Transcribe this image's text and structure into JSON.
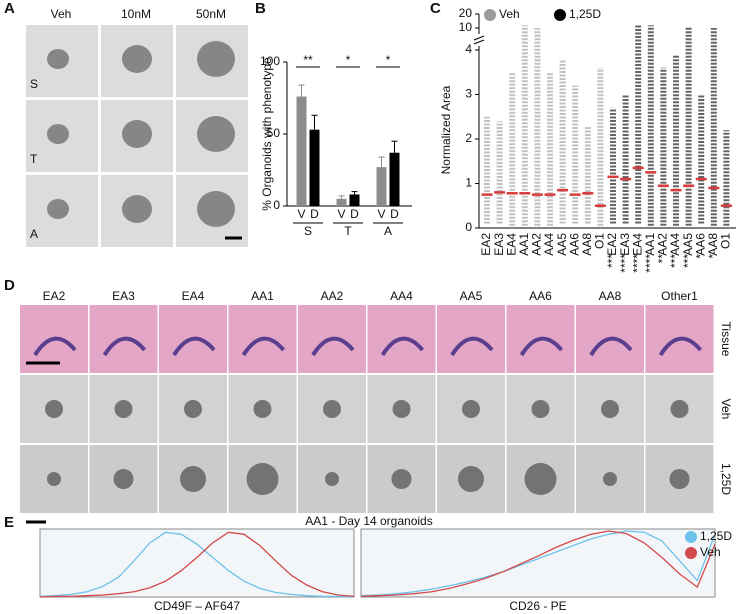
{
  "panel_labels": [
    "A",
    "B",
    "C",
    "D",
    "E"
  ],
  "panel_a": {
    "columns": [
      "Veh",
      "10nM",
      "50nM"
    ],
    "rows": [
      "S",
      "T",
      "A"
    ]
  },
  "panel_d": {
    "columns": [
      "EA2",
      "EA3",
      "EA4",
      "AA1",
      "AA2",
      "AA4",
      "AA5",
      "AA6",
      "AA8",
      "Other1"
    ],
    "rows": [
      "Tissue",
      "Veh",
      "1,25D"
    ]
  },
  "chart_data": [
    {
      "type": "bar",
      "ylabel": "% Organoids with phenotype",
      "categories": [
        "S",
        "T",
        "A"
      ],
      "series": [
        {
          "name": "V",
          "color": "#8c8c8c",
          "values": [
            76,
            5,
            27
          ],
          "errors": [
            8,
            2,
            7
          ]
        },
        {
          "name": "D",
          "color": "#000000",
          "values": [
            53,
            8,
            37
          ],
          "errors": [
            10,
            2,
            8
          ]
        }
      ],
      "annotations": [
        "**",
        "*",
        "*"
      ],
      "ylim": [
        0,
        100
      ],
      "yticks": [
        0,
        50,
        100
      ]
    },
    {
      "type": "strip",
      "ylabel": "Normalized Area",
      "categories": [
        "EA2",
        "EA3",
        "EA4",
        "AA1",
        "AA2",
        "AA4",
        "AA5",
        "AA6",
        "AA8",
        "O1"
      ],
      "series": [
        {
          "name": "Veh",
          "color": "#9a9a9a",
          "values": [
            0.75,
            0.8,
            0.78,
            0.78,
            0.75,
            0.75,
            0.85,
            0.75,
            0.78,
            0.5
          ],
          "ranges": [
            [
              0.1,
              2.5
            ],
            [
              0.1,
              2.4
            ],
            [
              0.05,
              3.5
            ],
            [
              0.05,
              12
            ],
            [
              0.05,
              10
            ],
            [
              0.05,
              3.5
            ],
            [
              0.1,
              3.8
            ],
            [
              0.1,
              3.2
            ],
            [
              0.1,
              2.3
            ],
            [
              0.05,
              3.6
            ]
          ]
        },
        {
          "name": "1,25D",
          "color": "#000000",
          "values": [
            1.15,
            1.1,
            1.35,
            1.25,
            0.95,
            0.85,
            0.95,
            1.1,
            0.9,
            0.5
          ],
          "ranges": [
            [
              0.1,
              2.7
            ],
            [
              0.1,
              3.0
            ],
            [
              0.1,
              12
            ],
            [
              0.05,
              12
            ],
            [
              0.05,
              3.6
            ],
            [
              0.05,
              3.9
            ],
            [
              0.05,
              11
            ],
            [
              0.1,
              3.0
            ],
            [
              0.05,
              10
            ],
            [
              0.05,
              2.2
            ]
          ],
          "annotations": [
            "***",
            "****",
            "****",
            "****",
            "**",
            "***",
            "***",
            "*",
            "*",
            null
          ]
        }
      ],
      "median_color": "#d93a3a",
      "ylim": [
        0,
        4
      ],
      "yticks": [
        0,
        1,
        2,
        3,
        4
      ],
      "upper_ylim": [
        10,
        20
      ],
      "upper_yticks": [
        10,
        20
      ]
    },
    {
      "type": "line",
      "title": "AA1 - Day 14 organoids",
      "series": [
        {
          "name": "1,25D",
          "color": "#6ec1ea"
        },
        {
          "name": "Veh",
          "color": "#d24a4a"
        }
      ],
      "x": [
        0,
        0.05,
        0.1,
        0.15,
        0.2,
        0.25,
        0.3,
        0.35,
        0.4,
        0.45,
        0.5,
        0.55,
        0.6,
        0.65,
        0.7,
        0.75,
        0.8,
        0.85,
        0.9,
        0.95,
        1
      ],
      "xlim": [
        0,
        1
      ],
      "ylim": [
        0,
        100
      ],
      "plots": [
        {
          "xlabel": "CD49F – AF647",
          "values": [
            [
              1,
              2,
              4,
              8,
              16,
              30,
              55,
              82,
              98,
              95,
              80,
              60,
              40,
              24,
              13,
              7,
              4,
              2,
              1,
              1,
              0
            ],
            [
              0,
              1,
              1,
              2,
              3,
              5,
              8,
              14,
              24,
              40,
              60,
              82,
              98,
              95,
              78,
              55,
              33,
              18,
              8,
              3,
              1
            ]
          ]
        },
        {
          "xlabel": "CD26 - PE",
          "values": [
            [
              2,
              3,
              5,
              8,
              12,
              17,
              23,
              30,
              38,
              48,
              58,
              68,
              78,
              88,
              95,
              100,
              98,
              85,
              55,
              25,
              95
            ],
            [
              1,
              2,
              3,
              5,
              8,
              13,
              20,
              28,
              38,
              50,
              62,
              75,
              86,
              95,
              100,
              96,
              82,
              60,
              35,
              15,
              80
            ]
          ]
        }
      ]
    }
  ]
}
